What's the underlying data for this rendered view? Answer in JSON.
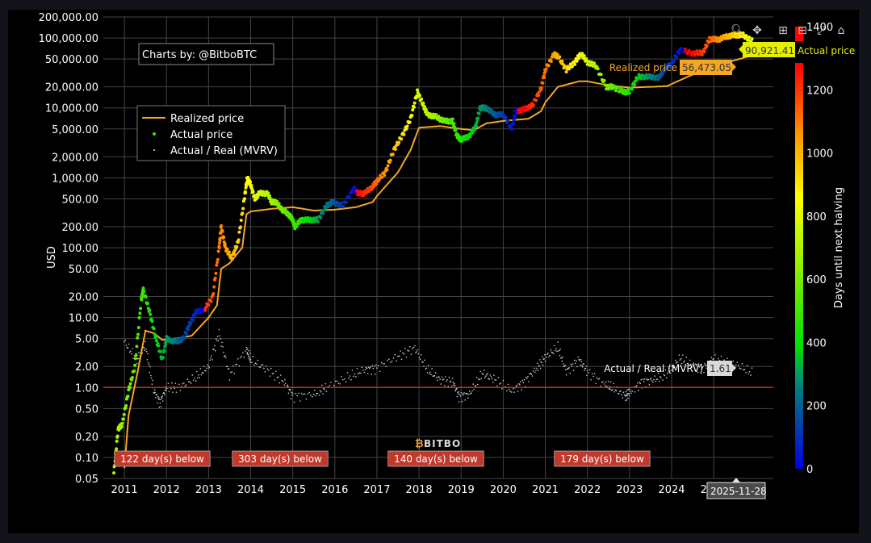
{
  "toolbar": {
    "zoom": "zoom-icon",
    "pan": "pan-icon",
    "zoom_in": "zoom-in-icon",
    "zoom_out": "zoom-out-icon",
    "autoscale": "autoscale-icon",
    "reset": "home-icon"
  },
  "chart_data": {
    "type": "scatter",
    "credit": "Charts by: @BitboBTC",
    "watermark": "BITBO",
    "ylabel": "USD",
    "yscale": "log",
    "ylim": [
      0.05,
      200000
    ],
    "xlim": [
      "2010-07-01",
      "2026-06-01"
    ],
    "yticks": [
      0.05,
      0.1,
      0.2,
      0.5,
      1,
      2,
      5,
      10,
      20,
      50,
      100,
      200,
      500,
      1000,
      2000,
      5000,
      10000,
      20000,
      50000,
      100000,
      200000
    ],
    "ytick_labels": [
      "0.05",
      "0.10",
      "0.20",
      "0.50",
      "1.00",
      "2.00",
      "5.00",
      "10.00",
      "20.00",
      "50.00",
      "100.00",
      "200.00",
      "500.00",
      "1,000.00",
      "2,000.00",
      "5,000.00",
      "10,000.00",
      "20,000.00",
      "50,000.00",
      "100,000.00",
      "200,000.00"
    ],
    "xtick_labels": [
      "2011",
      "2012",
      "2013",
      "2014",
      "2015",
      "2016",
      "2017",
      "2018",
      "2019",
      "2020",
      "2021",
      "2022",
      "2023",
      "2024",
      "2025"
    ],
    "colorbar": {
      "label": "Days until next halving",
      "min": 0,
      "max": 1400,
      "ticks": [
        "0",
        "200",
        "400",
        "600",
        "800",
        "1000",
        "1200",
        "1400"
      ]
    },
    "legend": {
      "position": "top-left",
      "entries": [
        "Realized price",
        "Actual price",
        "Actual / Real (MVRV)"
      ]
    },
    "reference_line": {
      "y": 1.0,
      "color": "#d62728"
    },
    "annotations": [
      "122 day(s) below",
      "303 day(s) below",
      "140 day(s) below",
      "179 day(s) below"
    ],
    "annotation_x": [
      2011.9,
      2014.7,
      2018.4,
      2022.35
    ],
    "hover": {
      "date": "2025-11-28",
      "actual_price": "90,921.41",
      "actual_price_label": "Actual price",
      "realized_price": "56,473.05",
      "realized_price_label": "Realized price",
      "mvrv": "1.61",
      "mvrv_label": "Actual / Real (MVRV)"
    },
    "series": [
      {
        "name": "Actual price",
        "color_by": "days_until_next_halving",
        "x": [
          2010.75,
          2010.85,
          2010.95,
          2011.1,
          2011.25,
          2011.4,
          2011.45,
          2011.6,
          2011.75,
          2011.9,
          2012.0,
          2012.2,
          2012.4,
          2012.55,
          2012.7,
          2012.9,
          2013.1,
          2013.25,
          2013.3,
          2013.4,
          2013.55,
          2013.7,
          2013.85,
          2013.92,
          2014.0,
          2014.1,
          2014.2,
          2014.4,
          2014.5,
          2014.6,
          2014.75,
          2014.9,
          2015.0,
          2015.05,
          2015.2,
          2015.4,
          2015.6,
          2015.8,
          2015.95,
          2016.2,
          2016.45,
          2016.55,
          2016.7,
          2016.9,
          2017.0,
          2017.2,
          2017.4,
          2017.6,
          2017.8,
          2017.96,
          2018.1,
          2018.2,
          2018.4,
          2018.6,
          2018.8,
          2018.9,
          2019.0,
          2019.2,
          2019.35,
          2019.45,
          2019.6,
          2019.8,
          2020.0,
          2020.2,
          2020.3,
          2020.5,
          2020.7,
          2020.9,
          2021.0,
          2021.2,
          2021.3,
          2021.5,
          2021.7,
          2021.85,
          2022.0,
          2022.2,
          2022.45,
          2022.6,
          2022.85,
          2023.0,
          2023.2,
          2023.45,
          2023.7,
          2023.85,
          2024.0,
          2024.2,
          2024.5,
          2024.75,
          2024.9,
          2025.1,
          2025.3,
          2025.5,
          2025.7,
          2025.91
        ],
        "y": [
          0.06,
          0.25,
          0.3,
          0.9,
          2,
          18,
          25,
          12,
          5,
          2.5,
          5,
          4.5,
          5,
          8,
          12,
          13,
          20,
          100,
          200,
          100,
          70,
          120,
          500,
          1000,
          800,
          500,
          600,
          600,
          450,
          450,
          350,
          300,
          250,
          200,
          250,
          250,
          250,
          400,
          450,
          400,
          700,
          600,
          600,
          750,
          900,
          1200,
          2500,
          4000,
          7000,
          17000,
          11000,
          8000,
          7500,
          6500,
          6500,
          4000,
          3500,
          4000,
          5500,
          10000,
          10000,
          8000,
          8000,
          5000,
          9000,
          9500,
          11000,
          19000,
          35000,
          58000,
          55000,
          35000,
          45000,
          60000,
          45000,
          40000,
          20000,
          20000,
          17000,
          17000,
          28000,
          28000,
          27000,
          37000,
          43000,
          68000,
          60000,
          62000,
          97000,
          95000,
          105000,
          110000,
          110000,
          90921
        ]
      },
      {
        "name": "Realized price",
        "x": [
          2011.0,
          2011.1,
          2011.3,
          2011.5,
          2011.7,
          2011.9,
          2012.2,
          2012.6,
          2013.0,
          2013.2,
          2013.3,
          2013.5,
          2013.8,
          2013.9,
          2014.0,
          2014.5,
          2015.0,
          2015.5,
          2016.0,
          2016.5,
          2016.9,
          2017.0,
          2017.5,
          2017.8,
          2018.0,
          2018.5,
          2019.0,
          2019.3,
          2019.6,
          2020.0,
          2020.6,
          2020.9,
          2021.0,
          2021.3,
          2021.8,
          2022.0,
          2022.5,
          2023.0,
          2023.5,
          2023.9,
          2024.0,
          2024.5,
          2024.9,
          2025.1,
          2025.5,
          2025.91
        ],
        "y": [
          0.07,
          0.4,
          1.5,
          6.5,
          6.0,
          4.8,
          5.0,
          5.5,
          10,
          15,
          50,
          60,
          100,
          300,
          330,
          360,
          380,
          340,
          350,
          380,
          450,
          550,
          1200,
          2500,
          5200,
          5500,
          5000,
          4800,
          6000,
          6500,
          7000,
          9000,
          12000,
          20000,
          24000,
          24000,
          21000,
          19500,
          20000,
          20500,
          22000,
          30000,
          33000,
          40000,
          48000,
          56473
        ]
      },
      {
        "name": "Actual / Real (MVRV)",
        "x": [
          2011.0,
          2011.3,
          2011.5,
          2011.7,
          2011.85,
          2012.0,
          2012.3,
          2012.7,
          2013.0,
          2013.25,
          2013.5,
          2013.9,
          2014.0,
          2014.4,
          2014.8,
          2015.0,
          2015.5,
          2015.8,
          2016.3,
          2016.7,
          2017.0,
          2017.5,
          2017.9,
          2018.2,
          2018.5,
          2018.8,
          2018.95,
          2019.2,
          2019.5,
          2019.8,
          2020.2,
          2020.5,
          2020.8,
          2021.0,
          2021.3,
          2021.5,
          2021.8,
          2022.0,
          2022.4,
          2022.6,
          2022.9,
          2023.0,
          2023.3,
          2023.6,
          2023.9,
          2024.2,
          2024.5,
          2024.75,
          2025.0,
          2025.5,
          2025.91
        ],
        "y": [
          4.5,
          2.5,
          4.0,
          0.9,
          0.6,
          1.0,
          1.0,
          1.4,
          2.0,
          6.0,
          1.5,
          3.5,
          2.5,
          1.8,
          1.2,
          0.75,
          0.8,
          1.0,
          1.4,
          1.8,
          1.9,
          2.8,
          3.7,
          1.8,
          1.3,
          1.2,
          0.75,
          0.8,
          1.6,
          1.3,
          0.9,
          1.2,
          1.9,
          2.7,
          3.8,
          1.7,
          2.5,
          1.7,
          1.1,
          1.0,
          0.75,
          0.85,
          1.2,
          1.3,
          1.6,
          2.6,
          2.1,
          1.9,
          2.6,
          2.2,
          1.61
        ]
      }
    ]
  }
}
